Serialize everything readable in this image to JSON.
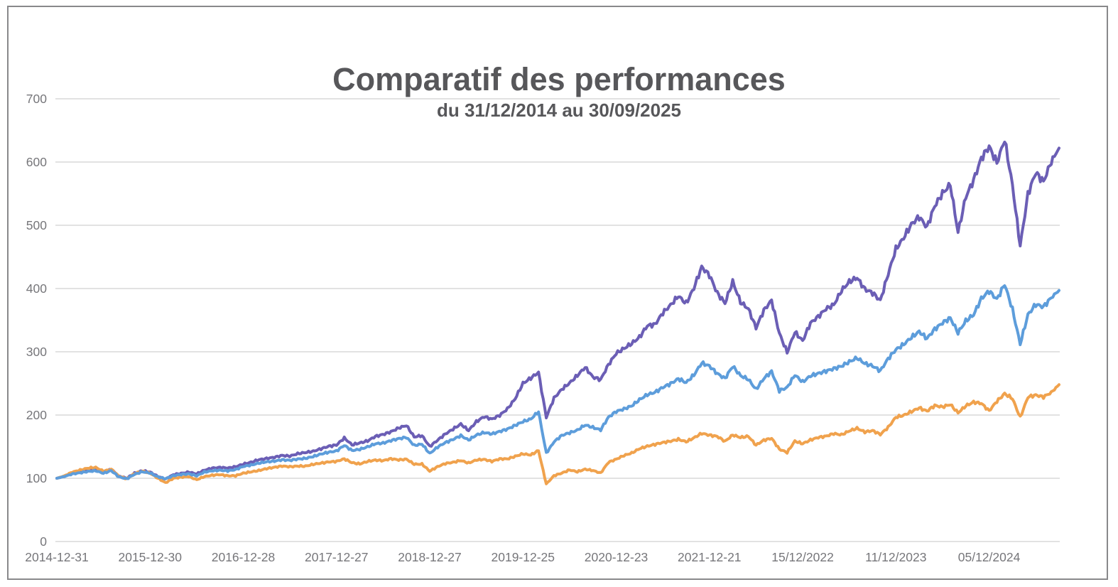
{
  "frame": {
    "background_color": "#ffffff",
    "border_color": "#89898b"
  },
  "chart_data": {
    "type": "line",
    "title": "Comparatif des performances",
    "subtitle": "du 31/12/2014 au 30/09/2025",
    "grid": true,
    "legend_position": "none",
    "ylim": [
      0,
      700
    ],
    "y_ticks": [
      0,
      100,
      200,
      300,
      400,
      500,
      600,
      700
    ],
    "x_tick_labels": [
      "2014-12-31",
      "2015-12-30",
      "2016-12-28",
      "2017-12-27",
      "2018-12-27",
      "2019-12-25",
      "2020-12-23",
      "2021-12-21",
      "15/12/2022",
      "11/12/2023",
      "05/12/2024"
    ],
    "x_unit": "months from 2014-12 (index 0) to 2025-09 (index 129), one tick every 12 months",
    "months_per_tick": 12,
    "total_months": 129,
    "base_value": 100,
    "gridline_color": "#d8d8d8",
    "tick_label_color": "#76767a",
    "series": [
      {
        "name": "ligne-violette",
        "color": "#6B5EB5",
        "final_value": 622,
        "monthly_values": [
          100,
          103,
          108,
          111,
          113,
          114,
          110,
          114,
          103,
          100,
          108,
          112,
          110,
          103,
          99,
          106,
          108,
          110,
          107,
          113,
          116,
          117,
          116,
          118,
          122,
          125,
          129,
          131,
          133,
          136,
          135,
          139,
          141,
          143,
          147,
          151,
          153,
          164,
          153,
          156,
          159,
          166,
          169,
          173,
          179,
          183,
          165,
          167,
          150,
          160,
          170,
          178,
          186,
          176,
          190,
          198,
          194,
          200,
          210,
          226,
          250,
          258,
          267,
          196,
          226,
          240,
          250,
          262,
          275,
          260,
          256,
          280,
          298,
          306,
          314,
          324,
          342,
          344,
          362,
          374,
          388,
          376,
          400,
          433,
          420,
          392,
          376,
          410,
          378,
          368,
          338,
          366,
          382,
          330,
          300,
          332,
          318,
          346,
          356,
          368,
          374,
          396,
          410,
          416,
          398,
          392,
          380,
          422,
          462,
          480,
          502,
          514,
          498,
          532,
          552,
          566,
          490,
          546,
          572,
          606,
          624,
          598,
          634,
          562,
          466,
          548,
          582,
          568,
          600,
          622
        ]
      },
      {
        "name": "ligne-orange",
        "color": "#F0A24D",
        "final_value": 248,
        "monthly_values": [
          100,
          104,
          110,
          113,
          116,
          117,
          111,
          114,
          103,
          99,
          107,
          111,
          108,
          100,
          93,
          100,
          102,
          103,
          98,
          103,
          105,
          106,
          104,
          104,
          108,
          110,
          112,
          115,
          117,
          119,
          118,
          119,
          119,
          122,
          124,
          126,
          127,
          131,
          125,
          123,
          127,
          129,
          128,
          131,
          129,
          130,
          122,
          122,
          111,
          118,
          123,
          125,
          128,
          124,
          129,
          130,
          127,
          131,
          131,
          135,
          139,
          137,
          144,
          91,
          104,
          108,
          113,
          110,
          114,
          112,
          108,
          125,
          130,
          136,
          140,
          147,
          151,
          154,
          157,
          159,
          162,
          158,
          164,
          171,
          168,
          166,
          158,
          168,
          164,
          166,
          152,
          160,
          163,
          146,
          141,
          159,
          155,
          161,
          165,
          167,
          171,
          169,
          175,
          179,
          173,
          175,
          169,
          180,
          196,
          199,
          205,
          211,
          206,
          215,
          213,
          217,
          204,
          215,
          221,
          219,
          207,
          222,
          234,
          226,
          196,
          228,
          231,
          228,
          235,
          248
        ]
      },
      {
        "name": "ligne-bleue",
        "color": "#5D9DDB",
        "final_value": 397,
        "monthly_values": [
          100,
          103,
          107,
          109,
          111,
          112,
          108,
          112,
          102,
          99,
          106,
          110,
          108,
          102,
          99,
          104,
          106,
          107,
          104,
          110,
          112,
          113,
          112,
          114,
          119,
          121,
          124,
          126,
          127,
          129,
          128,
          130,
          131,
          134,
          138,
          141,
          143,
          152,
          144,
          146,
          150,
          155,
          156,
          160,
          163,
          165,
          152,
          154,
          139,
          149,
          156,
          161,
          167,
          160,
          168,
          172,
          170,
          174,
          178,
          184,
          190,
          194,
          206,
          140,
          158,
          168,
          172,
          176,
          184,
          180,
          176,
          196,
          205,
          209,
          214,
          224,
          232,
          236,
          244,
          250,
          258,
          252,
          264,
          283,
          278,
          266,
          258,
          277,
          262,
          256,
          240,
          257,
          268,
          238,
          243,
          263,
          252,
          262,
          266,
          270,
          274,
          278,
          285,
          291,
          282,
          278,
          270,
          289,
          303,
          311,
          322,
          331,
          320,
          335,
          345,
          353,
          330,
          349,
          359,
          385,
          397,
          384,
          408,
          368,
          313,
          359,
          375,
          371,
          385,
          397
        ]
      }
    ]
  }
}
